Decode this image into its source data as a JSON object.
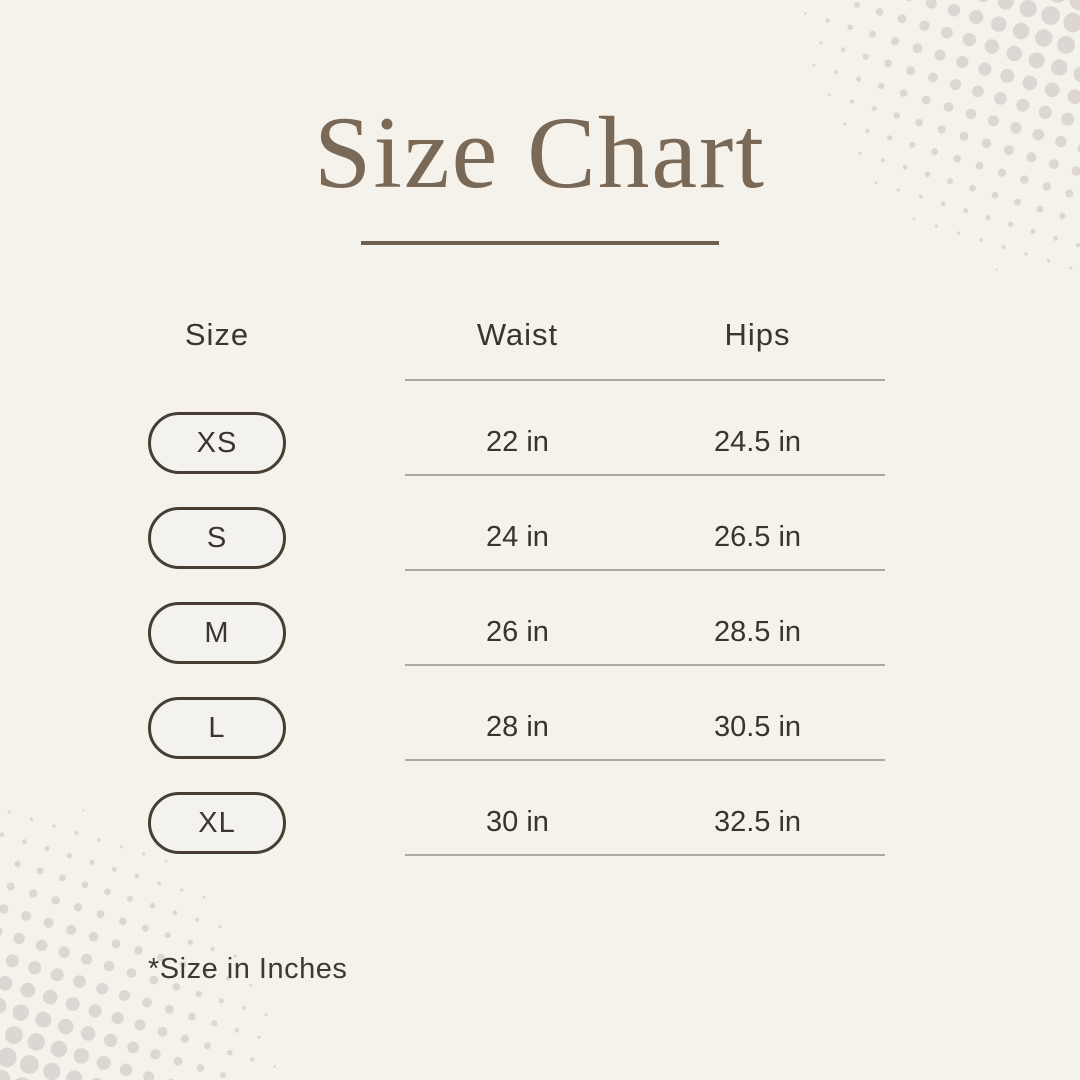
{
  "title": "Size Chart",
  "table": {
    "headers": {
      "size": "Size",
      "waist": "Waist",
      "hips": "Hips"
    },
    "rows": [
      {
        "size": "XS",
        "waist": "22 in",
        "hips": "24.5 in"
      },
      {
        "size": "S",
        "waist": "24 in",
        "hips": "26.5 in"
      },
      {
        "size": "M",
        "waist": "26 in",
        "hips": "28.5 in"
      },
      {
        "size": "L",
        "waist": "28 in",
        "hips": "30.5 in"
      },
      {
        "size": "XL",
        "waist": "30 in",
        "hips": "32.5 in"
      }
    ]
  },
  "footnote": "*Size in Inches",
  "colors": {
    "background": "#F4F2EB",
    "title": "#7A6957",
    "title_underline": "#6F6050",
    "heading_text": "#3B352D",
    "value_text": "#3A342D",
    "pill_border": "#473D32",
    "pill_fill": "#F3F2EE",
    "separator_line": "#ABA9A1",
    "halftone_dots": "#DCD7D2"
  },
  "chart_data": {
    "type": "table",
    "title": "Size Chart",
    "columns": [
      "Size",
      "Waist",
      "Hips"
    ],
    "rows": [
      [
        "XS",
        "22 in",
        "24.5 in"
      ],
      [
        "S",
        "24 in",
        "26.5 in"
      ],
      [
        "M",
        "26 in",
        "28.5 in"
      ],
      [
        "L",
        "28 in",
        "30.5 in"
      ],
      [
        "XL",
        "30 in",
        "32.5 in"
      ]
    ],
    "units": "inches",
    "footnote": "*Size in Inches"
  }
}
